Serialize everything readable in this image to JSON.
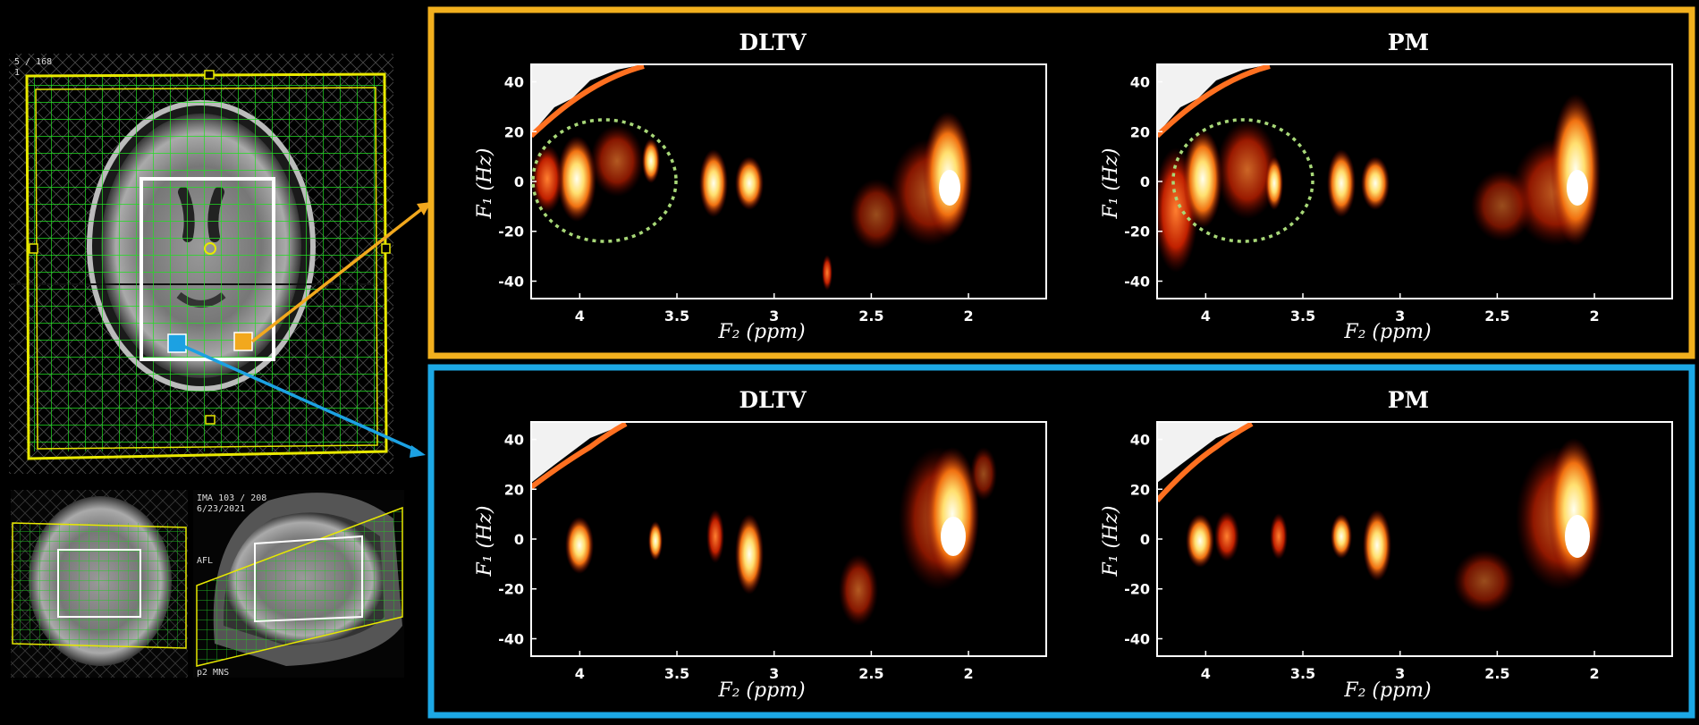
{
  "scanner": {
    "slice_counter": "5 / 168",
    "slice_sub": "1",
    "sagittal_info": "IMA 103 / 208",
    "sagittal_date": "6/23/2021",
    "sagittal_orient": "AFL",
    "sagittal_bottom": "p2 MNS"
  },
  "voxels": [
    {
      "label": "orange voxel",
      "color": "#F2A81D"
    },
    {
      "label": "blue voxel",
      "color": "#1CA1E2"
    }
  ],
  "groups": [
    {
      "name": "orange",
      "border_color": "#F2B01E",
      "panels": [
        {
          "title": "DLTV",
          "has_roi": true
        },
        {
          "title": "PM",
          "has_roi": true
        }
      ]
    },
    {
      "name": "blue",
      "border_color": "#1CA8E5",
      "panels": [
        {
          "title": "DLTV",
          "has_roi": false
        },
        {
          "title": "PM",
          "has_roi": false
        }
      ]
    }
  ],
  "axes": {
    "x_ticks": [
      "4",
      "3.5",
      "3",
      "2.5",
      "2"
    ],
    "y_ticks": [
      "40",
      "20",
      "0",
      "-20",
      "-40"
    ],
    "x_label": "F₂ (ppm)",
    "y_label": "F₁ (Hz)",
    "x_range": [
      4.25,
      1.6
    ],
    "y_range": [
      -47,
      47
    ]
  },
  "colors": {
    "contour_hot": "#FFFFE0",
    "contour_mid": "#FFC040",
    "contour_low": "#C02000",
    "roi": "#A8D878",
    "grid": "#22DD22",
    "fov": "#E8E800"
  }
}
